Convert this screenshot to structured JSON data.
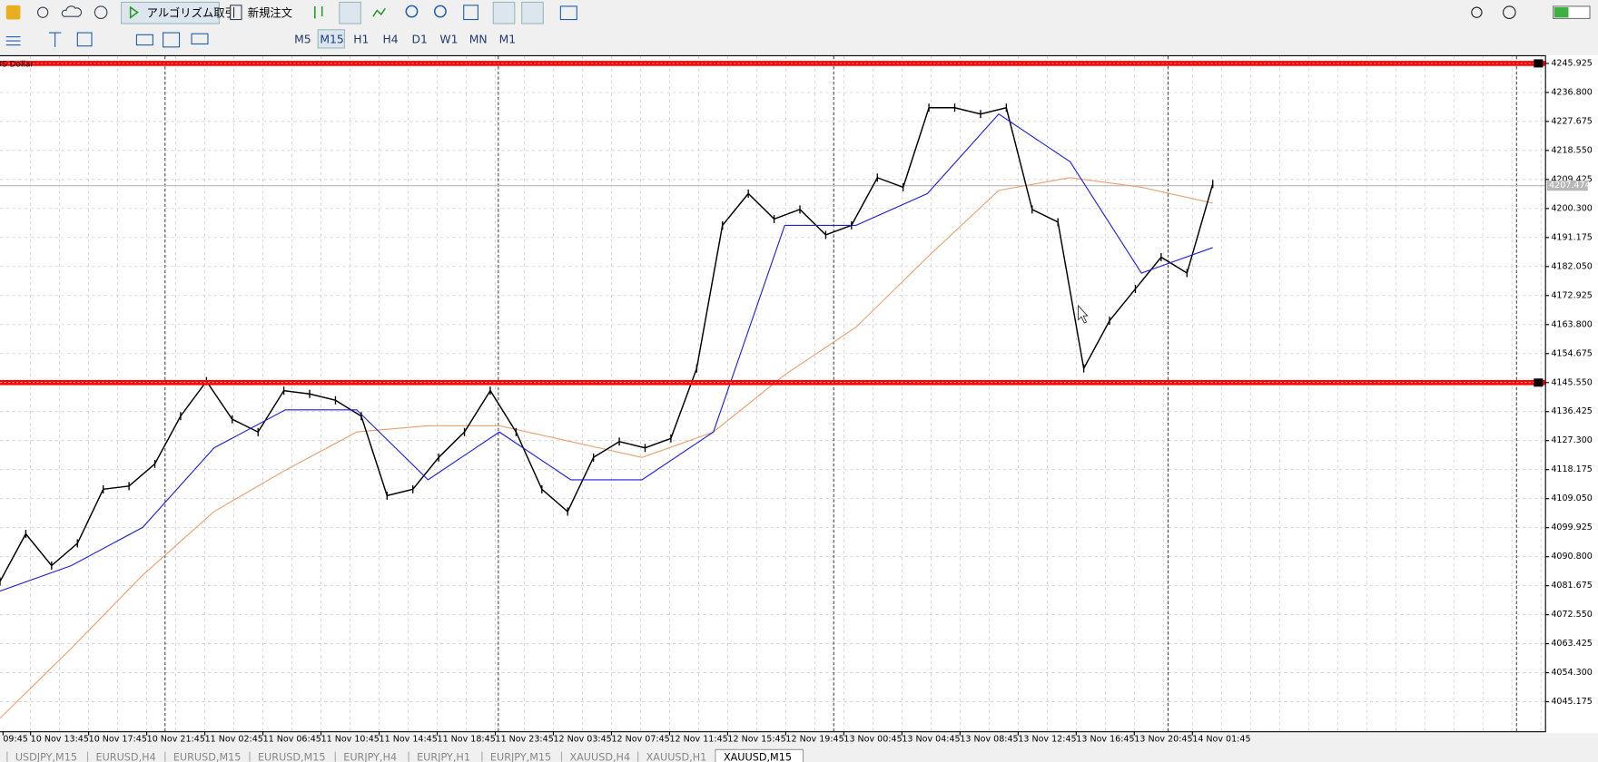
{
  "toolbar": {
    "algo_trading": "アルゴリズム取引",
    "new_order": "新規注文",
    "timeframes": [
      "M5",
      "M15",
      "H1",
      "H4",
      "D1",
      "W1",
      "MN",
      "M1"
    ],
    "active_timeframe": 1
  },
  "chart": {
    "symbol_label": "US Dollar",
    "ylim": [
      4035.9,
      4248.2
    ],
    "price_ticks": [
      4245.925,
      {
        "value": 4236.8,
        "label": "4236.800"
      },
      4227.675,
      {
        "value": 4218.55,
        "label": "4218.550"
      },
      4209.425,
      {
        "value": 4200.3,
        "label": "4200.300"
      },
      4191.175,
      {
        "value": 4182.05,
        "label": "4182.050"
      },
      4172.925,
      {
        "value": 4163.8,
        "label": "4163.800"
      },
      4154.675,
      {
        "value": 4145.55,
        "label": "4145.550"
      },
      4136.425,
      {
        "value": 4127.3,
        "label": "4127.300"
      },
      4118.175,
      {
        "value": 4109.05,
        "label": "4109.050"
      },
      4099.925,
      {
        "value": 4090.8,
        "label": "4090.800"
      },
      4081.675,
      {
        "value": 4072.55,
        "label": "4072.550"
      },
      4063.425,
      {
        "value": 4054.3,
        "label": "4054.300"
      },
      4045.175
    ],
    "time_labels": [
      "09:45",
      "10 Nov 13:45",
      "10 Nov 17:45",
      "10 Nov 21:45",
      "11 Nov 02:45",
      "11 Nov 06:45",
      "11 Nov 10:45",
      "11 Nov 14:45",
      "11 Nov 18:45",
      "11 Nov 23:45",
      "12 Nov 03:45",
      "12 Nov 07:45",
      "12 Nov 11:45",
      "12 Nov 15:45",
      "12 Nov 19:45",
      "13 Nov 00:45",
      "13 Nov 04:45",
      "13 Nov 08:45",
      "13 Nov 12:45",
      "13 Nov 16:45",
      "13 Nov 20:45",
      "14 Nov 01:45"
    ],
    "levels": [
      4245.925,
      4145.55
    ],
    "level_color": "#ff0000",
    "current_price": 4207.474,
    "price": {
      "color": "#000000",
      "values": [
        4083,
        4098,
        4088,
        4095,
        4112,
        4113,
        4120,
        4135,
        4146,
        4134,
        4130,
        4143,
        4142,
        4140,
        4135,
        4110,
        4112,
        4122,
        4130,
        4143,
        4130,
        4112,
        4105,
        4122,
        4127,
        4125,
        4128,
        4150,
        4195,
        4205,
        4197,
        4200,
        4192,
        4195,
        4210,
        4207,
        4232,
        4232,
        4230,
        4232,
        4200,
        4196,
        4150,
        4165,
        4175,
        4185,
        4180,
        4208
      ]
    },
    "ma_fast": {
      "color": "#1f1fe0",
      "values": [
        4080,
        4088,
        4100,
        4125,
        4137,
        4137,
        4115,
        4130,
        4115,
        4115,
        4130,
        4195,
        4195,
        4205,
        4230,
        4215,
        4180,
        4188
      ]
    },
    "ma_slow": {
      "color": "#e8a070",
      "values": [
        4040,
        4062,
        4085,
        4105,
        4118,
        4130,
        4132,
        4132,
        4127,
        4122,
        4130,
        4148,
        4163,
        4185,
        4206,
        4210,
        4207,
        4202
      ]
    }
  },
  "tabs": [
    "USDJPY,M15",
    "EURUSD,H4",
    "EURUSD,M15",
    "EURUSD,M15",
    "EURJPY,H4",
    "EURJPY,H1",
    "EURJPY,M15",
    "XAUUSD,H4",
    "XAUUSD,H1",
    "XAUUSD,M15"
  ],
  "active_tab": 9
}
